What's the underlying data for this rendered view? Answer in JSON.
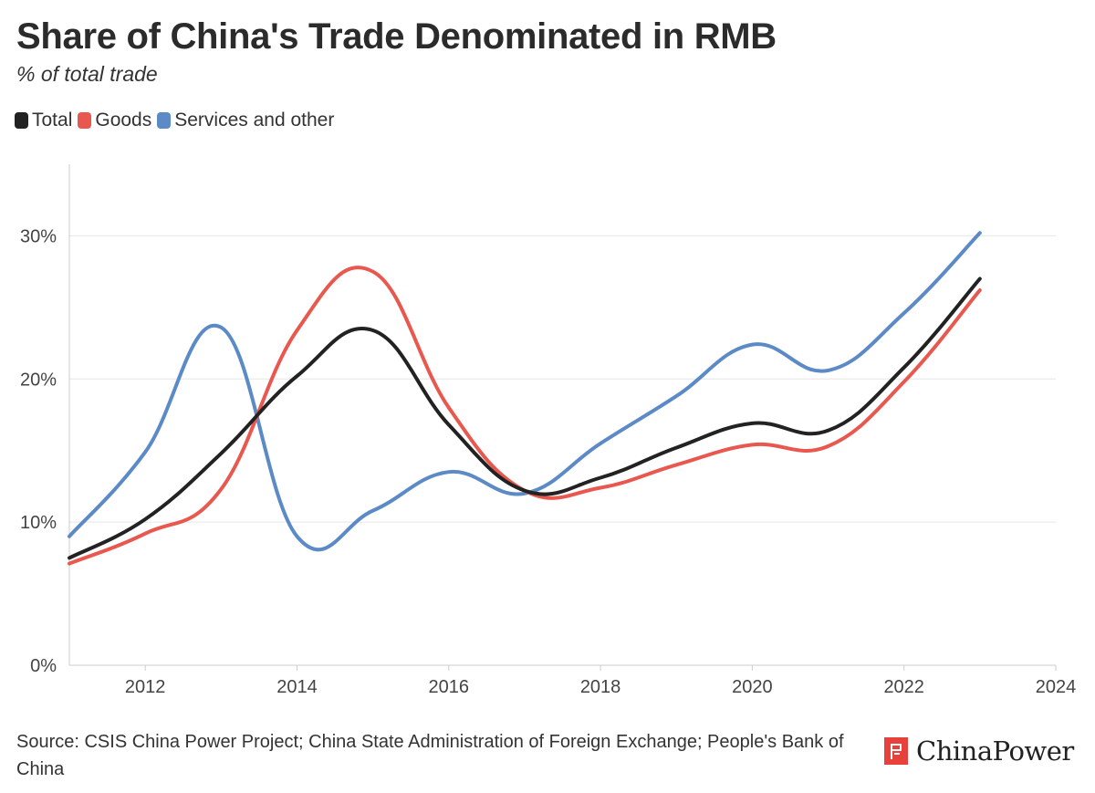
{
  "chart_data": {
    "type": "line",
    "title": "Share of China's Trade Denominated in RMB",
    "subtitle": "% of total trade",
    "xlabel": "",
    "ylabel": "",
    "xlim": [
      2011,
      2024
    ],
    "ylim": [
      0,
      35
    ],
    "x_ticks": [
      2012,
      2014,
      2016,
      2018,
      2020,
      2022,
      2024
    ],
    "y_ticks": [
      0,
      10,
      20,
      30
    ],
    "y_tick_labels": [
      "0%",
      "10%",
      "20%",
      "30%"
    ],
    "grid": "horizontal",
    "legend_position": "top-left",
    "x": [
      2011,
      2012,
      2013,
      2014,
      2015,
      2016,
      2017,
      2018,
      2019,
      2020,
      2021,
      2022,
      2023
    ],
    "series": [
      {
        "name": "Total",
        "color": "#222222",
        "values": [
          7.5,
          10.2,
          14.8,
          20.2,
          23.4,
          16.8,
          12.2,
          13.1,
          15.2,
          16.9,
          16.4,
          20.8,
          27.0
        ]
      },
      {
        "name": "Goods",
        "color": "#e8584f",
        "values": [
          7.1,
          9.2,
          12.3,
          23.4,
          27.5,
          18.0,
          12.2,
          12.4,
          14.0,
          15.4,
          15.3,
          19.8,
          26.2
        ]
      },
      {
        "name": "Services and other",
        "color": "#5b8ac6",
        "values": [
          9.0,
          14.9,
          23.6,
          9.0,
          10.8,
          13.5,
          12.0,
          15.5,
          18.8,
          22.4,
          20.6,
          24.6,
          30.2
        ]
      }
    ]
  },
  "source": "Source: CSIS China Power Project; China State Administration of Foreign Exchange; People's Bank of China",
  "logo": {
    "name": "ChinaPower",
    "color": "#e8403a"
  }
}
